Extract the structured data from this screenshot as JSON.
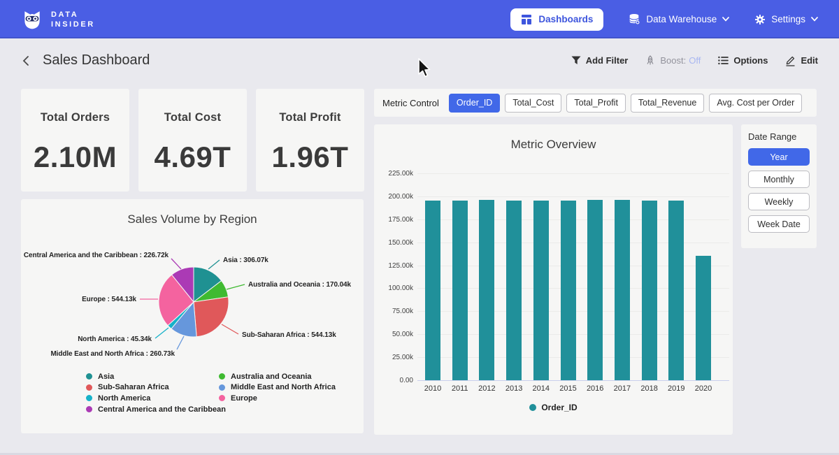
{
  "nav": {
    "brand_line1": "DATA",
    "brand_line2": "INSIDER",
    "dashboards_label": "Dashboards",
    "data_warehouse_label": "Data Warehouse",
    "settings_label": "Settings"
  },
  "header": {
    "title": "Sales Dashboard",
    "add_filter_label": "Add Filter",
    "boost_label": "Boost:",
    "boost_value": "Off",
    "options_label": "Options",
    "edit_label": "Edit"
  },
  "kpis": [
    {
      "label": "Total Orders",
      "value": "2.10M"
    },
    {
      "label": "Total Cost",
      "value": "4.69T"
    },
    {
      "label": "Total Profit",
      "value": "1.96T"
    }
  ],
  "metric_control": {
    "label": "Metric Control",
    "options": [
      {
        "label": "Order_ID",
        "selected": true
      },
      {
        "label": "Total_Cost",
        "selected": false
      },
      {
        "label": "Total_Profit",
        "selected": false
      },
      {
        "label": "Total_Revenue",
        "selected": false
      },
      {
        "label": "Avg. Cost per Order",
        "selected": false
      }
    ]
  },
  "date_range": {
    "label": "Date Range",
    "options": [
      {
        "label": "Year",
        "selected": true
      },
      {
        "label": "Monthly",
        "selected": false
      },
      {
        "label": "Weekly",
        "selected": false
      },
      {
        "label": "Week Date",
        "selected": false
      }
    ]
  },
  "icons": {
    "logo": "owl",
    "dashboards": "dashboard-grid",
    "data_warehouse": "database",
    "settings": "gear",
    "dropdown": "chevron-down",
    "back": "chevron-left",
    "add_filter": "funnel",
    "boost": "rocket",
    "options": "bulleted-list",
    "edit": "pencil",
    "cursor": "arrow-pointer"
  },
  "colors": {
    "nav_blue": "#4a5ee4",
    "accent_blue": "#4168e8",
    "boost_off": "#a9b7f1",
    "bar_teal": "#20909a",
    "card_bg": "#f6f6f5",
    "page_bg": "#e9e9ee"
  },
  "chart_data": [
    {
      "type": "bar",
      "title": "Metric Overview",
      "xlabel": "",
      "ylabel": "",
      "categories": [
        "2010",
        "2011",
        "2012",
        "2013",
        "2014",
        "2015",
        "2016",
        "2017",
        "2018",
        "2019",
        "2020"
      ],
      "series": [
        {
          "name": "Order_ID",
          "color": "#20909a",
          "values": [
            195500,
            195500,
            196300,
            195300,
            195500,
            195400,
            196400,
            195700,
            195500,
            195600,
            135600
          ]
        }
      ],
      "ylim": [
        0,
        225000
      ],
      "ytick_labels": [
        "0.00",
        "25.00k",
        "50.00k",
        "75.00k",
        "100.00k",
        "125.00k",
        "150.00k",
        "175.00k",
        "200.00k",
        "225.00k"
      ],
      "grid": true,
      "legend_position": "bottom"
    },
    {
      "type": "pie",
      "title": "Sales Volume by Region",
      "slices": [
        {
          "name": "Asia",
          "value": 306070,
          "display": "306.07k",
          "label": "Asia : 306.07k",
          "color": "#1f9192"
        },
        {
          "name": "Australia and Oceania",
          "value": 170040,
          "display": "170.04k",
          "label": "Australia and Oceania : 170.04k",
          "color": "#3fba31"
        },
        {
          "name": "Sub-Saharan Africa",
          "value": 544130,
          "display": "544.13k",
          "label": "Sub-Saharan Africa : 544.13k",
          "color": "#e0585a"
        },
        {
          "name": "Middle East and North Africa",
          "value": 260730,
          "display": "260.73k",
          "label": "Middle East and North Africa : 260.73k",
          "color": "#6697dc"
        },
        {
          "name": "North America",
          "value": 45340,
          "display": "45.34k",
          "label": "North America : 45.34k",
          "color": "#16b2c9"
        },
        {
          "name": "Europe",
          "value": 544130,
          "display": "544.13k",
          "label": "Europe : 544.13k",
          "color": "#f4639f"
        },
        {
          "name": "Central America and the Caribbean",
          "value": 226720,
          "display": "226.72k",
          "label": "Central America and the Caribbean : 226.72k",
          "color": "#ab3ab5"
        }
      ],
      "legend_columns": [
        [
          "Asia",
          "Sub-Saharan Africa",
          "North America",
          "Central America and the Caribbean"
        ],
        [
          "Australia and Oceania",
          "Middle East and North Africa",
          "Europe"
        ]
      ],
      "legend_position": "bottom"
    }
  ]
}
